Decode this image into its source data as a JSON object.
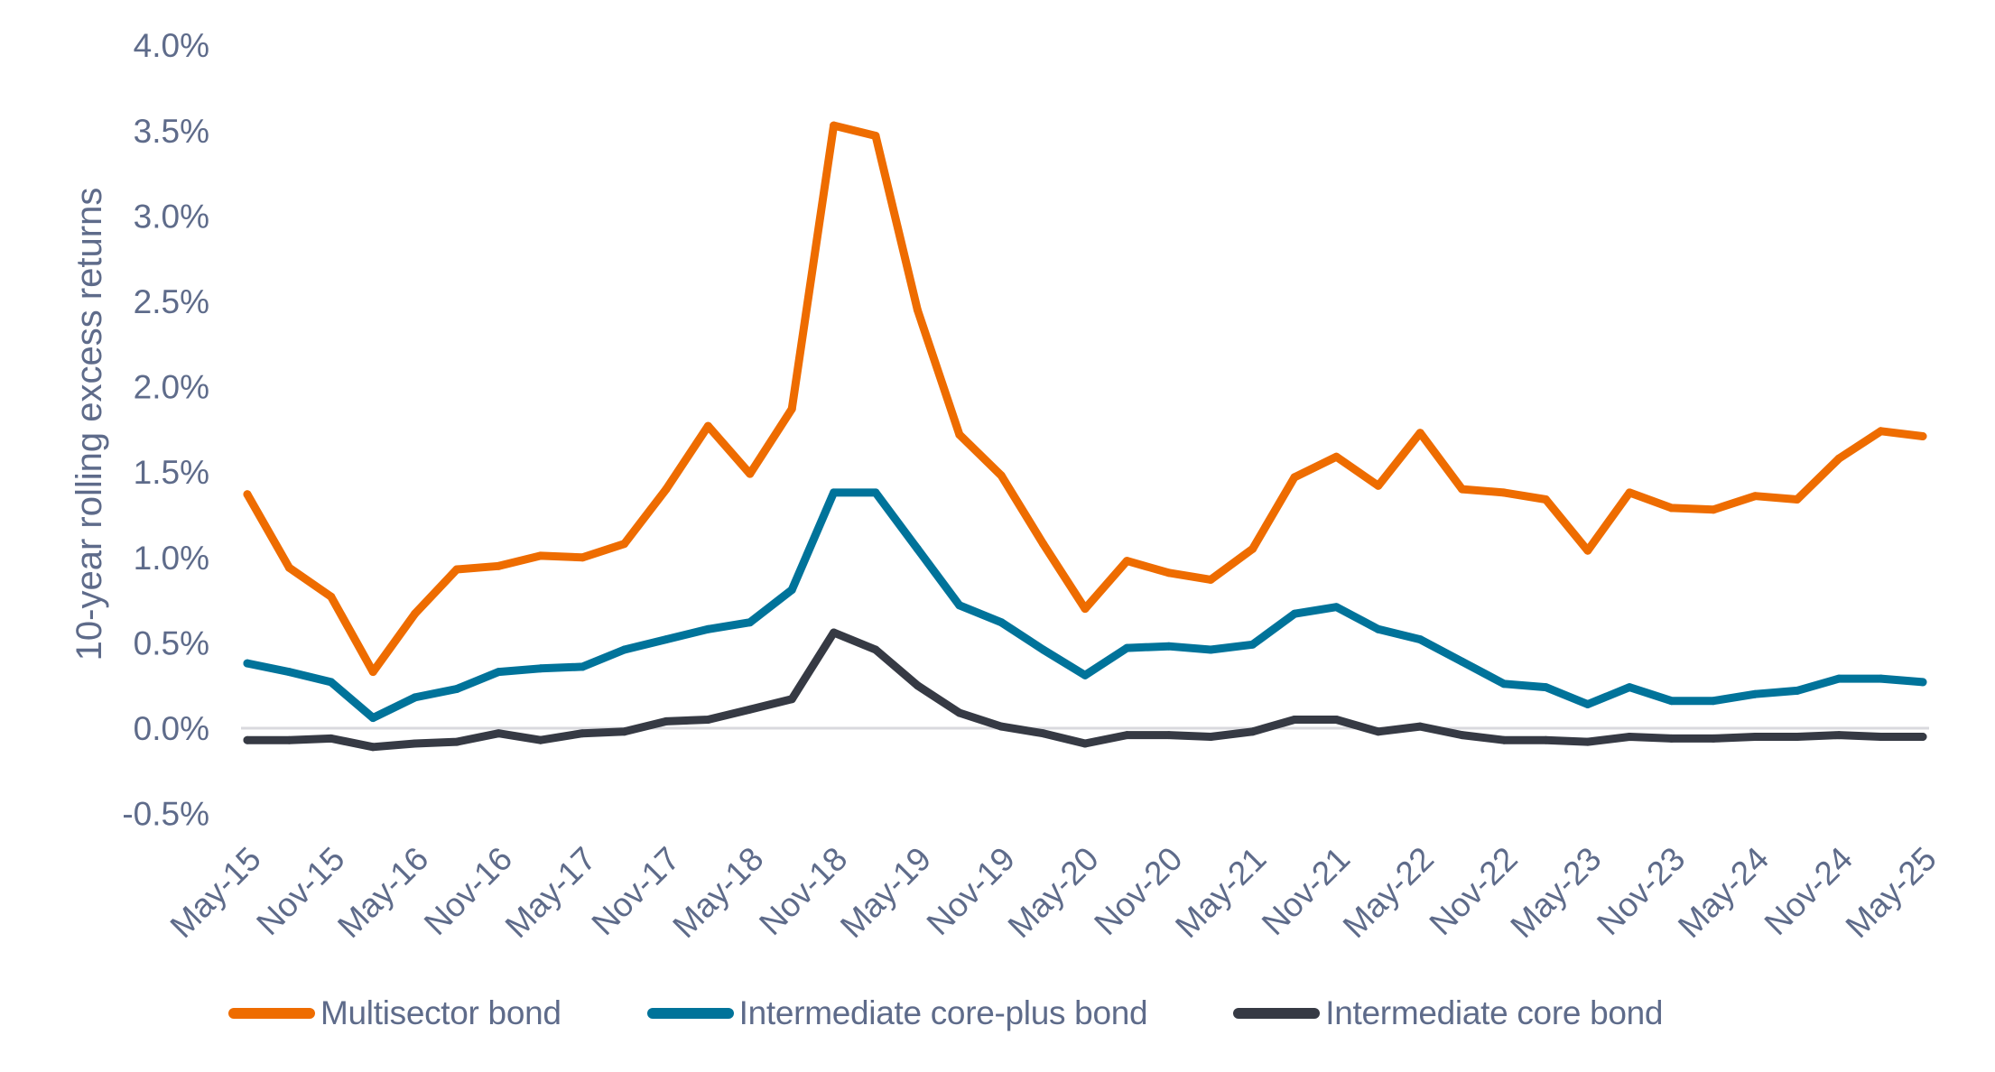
{
  "chart_data": {
    "type": "line",
    "title": "",
    "xlabel": "",
    "ylabel": "10-year rolling excess returns",
    "ylim": [
      -0.5,
      4.0
    ],
    "yticks": [
      "-0.5%",
      "0.0%",
      "0.5%",
      "1.0%",
      "1.5%",
      "2.0%",
      "2.5%",
      "3.0%",
      "3.5%",
      "4.0%"
    ],
    "ytick_values": [
      -0.5,
      0.0,
      0.5,
      1.0,
      1.5,
      2.0,
      2.5,
      3.0,
      3.5,
      4.0
    ],
    "x_tick_labels": [
      "May-15",
      "Nov-15",
      "May-16",
      "Nov-16",
      "May-17",
      "Nov-17",
      "May-18",
      "Nov-18",
      "May-19",
      "Nov-19",
      "May-20",
      "Nov-20",
      "May-21",
      "Nov-21",
      "May-22",
      "Nov-22",
      "May-23",
      "Nov-23",
      "May-24",
      "Nov-24",
      "May-25"
    ],
    "x_points_per_label": 2,
    "grid": "zero-line only",
    "legend_position": "bottom",
    "series": [
      {
        "name": "Multisector bond",
        "color": "#ee6c00",
        "values": [
          1.37,
          0.94,
          0.77,
          0.33,
          0.67,
          0.93,
          0.95,
          1.01,
          1.0,
          1.08,
          1.4,
          1.77,
          1.49,
          1.87,
          3.53,
          3.47,
          2.45,
          1.72,
          1.48,
          1.08,
          0.7,
          0.98,
          0.91,
          0.87,
          1.05,
          1.47,
          1.59,
          1.42,
          1.73,
          1.4,
          1.38,
          1.34,
          1.04,
          1.38,
          1.29,
          1.28,
          1.36,
          1.34,
          1.58,
          1.74,
          1.71
        ]
      },
      {
        "name": "Intermediate core-plus bond",
        "color": "#00739a",
        "values": [
          0.38,
          0.33,
          0.27,
          0.06,
          0.18,
          0.23,
          0.33,
          0.35,
          0.36,
          0.46,
          0.52,
          0.58,
          0.62,
          0.81,
          1.38,
          1.38,
          1.05,
          0.72,
          0.62,
          0.46,
          0.31,
          0.47,
          0.48,
          0.46,
          0.49,
          0.67,
          0.71,
          0.58,
          0.52,
          0.39,
          0.26,
          0.24,
          0.14,
          0.24,
          0.16,
          0.16,
          0.2,
          0.22,
          0.29,
          0.29,
          0.27
        ]
      },
      {
        "name": "Intermediate core bond",
        "color": "#363a44",
        "values": [
          -0.07,
          -0.07,
          -0.06,
          -0.11,
          -0.09,
          -0.08,
          -0.03,
          -0.07,
          -0.03,
          -0.02,
          0.04,
          0.05,
          0.11,
          0.17,
          0.56,
          0.46,
          0.25,
          0.09,
          0.01,
          -0.03,
          -0.09,
          -0.04,
          -0.04,
          -0.05,
          -0.02,
          0.05,
          0.05,
          -0.02,
          0.01,
          -0.04,
          -0.07,
          -0.07,
          -0.08,
          -0.05,
          -0.06,
          -0.06,
          -0.05,
          -0.05,
          -0.04,
          -0.05,
          -0.05
        ]
      }
    ]
  },
  "colors": {
    "text": "#5e6b8a",
    "zero_line": "#d9d9de"
  }
}
